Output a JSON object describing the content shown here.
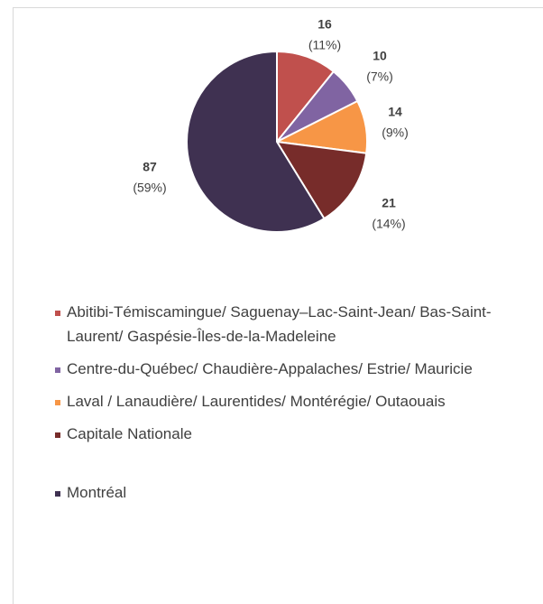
{
  "chart_data": {
    "type": "pie",
    "categories": [
      "Abitibi-Témiscamingue/ Saguenay–Lac-Saint-Jean/ Bas-Saint-Laurent/  Gaspésie-Îles-de-la-Madeleine",
      "Centre-du-Québec/ Chaudière-Appalaches/ Estrie/ Mauricie",
      "Laval / Lanaudière/ Laurentides/ Montérégie/ Outaouais",
      "Capitale Nationale",
      "Montréal"
    ],
    "values": [
      16,
      10,
      14,
      21,
      87
    ],
    "percentages": [
      11,
      7,
      9,
      14,
      59
    ],
    "percentage_labels": [
      "(11%)",
      "(7%)",
      "(9%)",
      "(14%)",
      "(59%)"
    ],
    "colors": [
      "#c0504d",
      "#8064a2",
      "#f79646",
      "#772c2a",
      "#3f3151"
    ],
    "legend": "bottom"
  }
}
